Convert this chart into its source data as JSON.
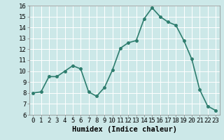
{
  "x": [
    0,
    1,
    2,
    3,
    4,
    5,
    6,
    7,
    8,
    9,
    10,
    11,
    12,
    13,
    14,
    15,
    16,
    17,
    18,
    19,
    20,
    21,
    22,
    23
  ],
  "y": [
    8.0,
    8.1,
    9.5,
    9.5,
    10.0,
    10.5,
    10.2,
    8.1,
    7.7,
    8.5,
    10.1,
    12.1,
    12.6,
    12.8,
    14.8,
    15.8,
    15.0,
    14.5,
    14.2,
    12.8,
    11.1,
    8.3,
    6.8,
    6.4
  ],
  "line_color": "#2e7d6e",
  "marker": "o",
  "marker_size": 2.5,
  "line_width": 1.2,
  "bg_color": "#cce8e8",
  "grid_color": "#ffffff",
  "xlabel": "Humidex (Indice chaleur)",
  "xlabel_fontsize": 7.5,
  "xlabel_fontweight": "bold",
  "ylim": [
    6,
    16
  ],
  "xlim": [
    -0.5,
    23.5
  ],
  "yticks": [
    6,
    7,
    8,
    9,
    10,
    11,
    12,
    13,
    14,
    15,
    16
  ],
  "xticks": [
    0,
    1,
    2,
    3,
    4,
    5,
    6,
    7,
    8,
    9,
    10,
    11,
    12,
    13,
    14,
    15,
    16,
    17,
    18,
    19,
    20,
    21,
    22,
    23
  ],
  "tick_fontsize": 6.5
}
